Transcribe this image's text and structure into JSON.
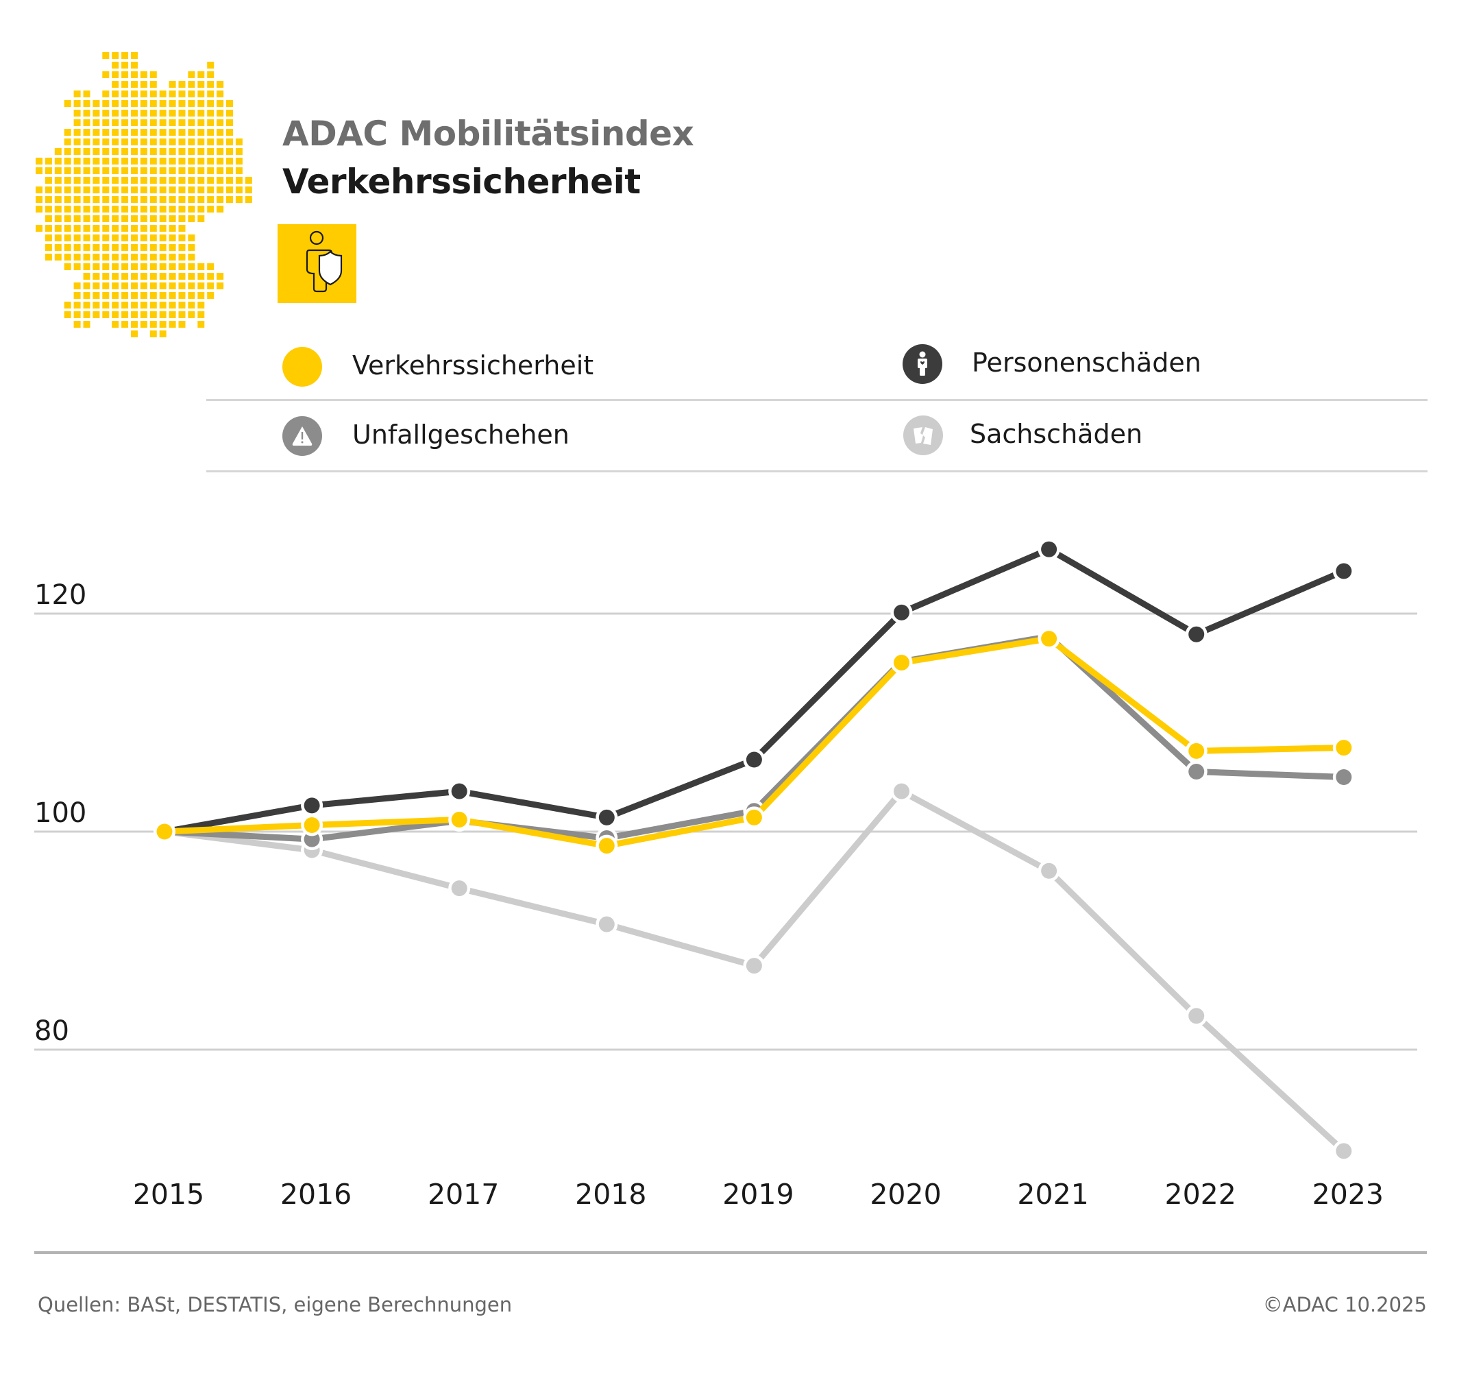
{
  "header": {
    "title": "ADAC Mobilitätsindex",
    "subtitle": "Verkehrssicherheit",
    "topic_icon": "person-shield-icon",
    "map_icon": "germany-dot-map"
  },
  "legend": [
    {
      "label": "Verkehrssicherheit",
      "icon": "yellow-dot",
      "color": "#ffcc00"
    },
    {
      "label": "Personenschäden",
      "icon": "person-icon",
      "color": "#3c3c3c"
    },
    {
      "label": "Unfallgeschehen",
      "icon": "warning-icon",
      "color": "#8c8c8c"
    },
    {
      "label": "Sachschäden",
      "icon": "broken-card-icon",
      "color": "#cccccc"
    }
  ],
  "chart_data": {
    "type": "line",
    "title": "Verkehrssicherheit",
    "xlabel": "",
    "ylabel": "",
    "x": [
      "2015",
      "2016",
      "2017",
      "2018",
      "2019",
      "2020",
      "2021",
      "2022",
      "2023"
    ],
    "ylim": [
      68,
      128
    ],
    "yticks": [
      "80",
      "100",
      "120"
    ],
    "ytick_values": [
      80,
      100,
      120
    ],
    "grid": "horizontal",
    "legend_position": "top",
    "series": [
      {
        "name": "Sachschäden",
        "color": "#cccccc",
        "values": [
          100,
          98.3,
          94.8,
          91.5,
          87.7,
          103.7,
          96.4,
          83.1,
          70.7
        ]
      },
      {
        "name": "Unfallgeschehen",
        "color": "#8c8c8c",
        "values": [
          100,
          99.3,
          101.0,
          99.4,
          101.9,
          115.6,
          117.9,
          105.5,
          105.0
        ]
      },
      {
        "name": "Personenschäden",
        "color": "#3c3c3c",
        "values": [
          100,
          102.4,
          103.7,
          101.3,
          106.6,
          120.1,
          125.9,
          118.1,
          123.9
        ]
      },
      {
        "name": "Verkehrssicherheit",
        "color": "#ffcc00",
        "values": [
          100,
          100.6,
          101.1,
          98.7,
          101.3,
          115.5,
          117.7,
          107.4,
          107.7
        ]
      }
    ]
  },
  "footer": {
    "source": "Quellen: BASt, DESTATIS, eigene Berechnungen",
    "copyright": "©ADAC 10.2025"
  }
}
